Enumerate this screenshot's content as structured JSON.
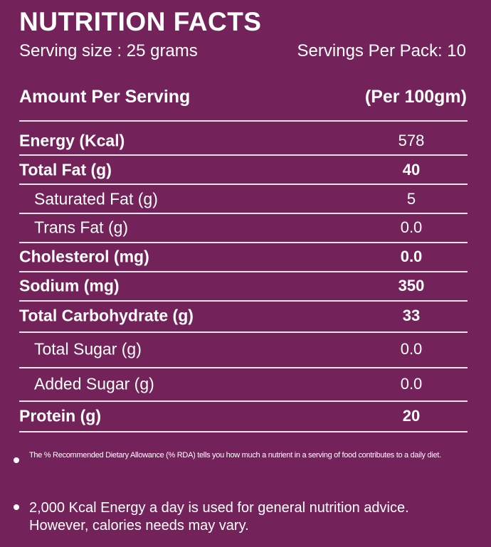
{
  "title": "NUTRITION FACTS",
  "serving_size": "Serving size : 25 grams",
  "servings_per_pack": "Servings Per Pack: 10",
  "header": {
    "left": "Amount Per Serving",
    "right": "(Per 100gm)"
  },
  "rows": [
    {
      "label": "Energy (Kcal)",
      "value": "578",
      "bold_label": true,
      "bold_value": false
    },
    {
      "label": "Total Fat (g)",
      "value": "40",
      "bold_label": true,
      "bold_value": true
    },
    {
      "label": "Saturated Fat (g)",
      "value": "5",
      "bold_label": false,
      "bold_value": false
    },
    {
      "label": "Trans Fat (g)",
      "value": "0.0",
      "bold_label": false,
      "bold_value": false
    },
    {
      "label": "Cholesterol (mg)",
      "value": "0.0",
      "bold_label": true,
      "bold_value": true
    },
    {
      "label": "Sodium  (mg)",
      "value": "350",
      "bold_label": true,
      "bold_value": true
    },
    {
      "label": "Total Carbohydrate (g)",
      "value": "33",
      "bold_label": true,
      "bold_value": true
    },
    {
      "label": "Total Sugar (g)",
      "value": "0.0",
      "bold_label": false,
      "bold_value": false
    },
    {
      "label": "Added Sugar (g)",
      "value": "0.0",
      "bold_label": false,
      "bold_value": false
    },
    {
      "label": "Protein (g)",
      "value": "20",
      "bold_label": true,
      "bold_value": true
    }
  ],
  "notes": [
    "The % Recommended Dietary Allowance (% RDA) tells you how much a nutrient in a serving of food contributes to a daily diet.",
    "2,000 Kcal Energy a day is used for general nutrition advice. However, calories needs may vary."
  ],
  "colors": {
    "background": "#74225a",
    "text": "#ffffff"
  }
}
